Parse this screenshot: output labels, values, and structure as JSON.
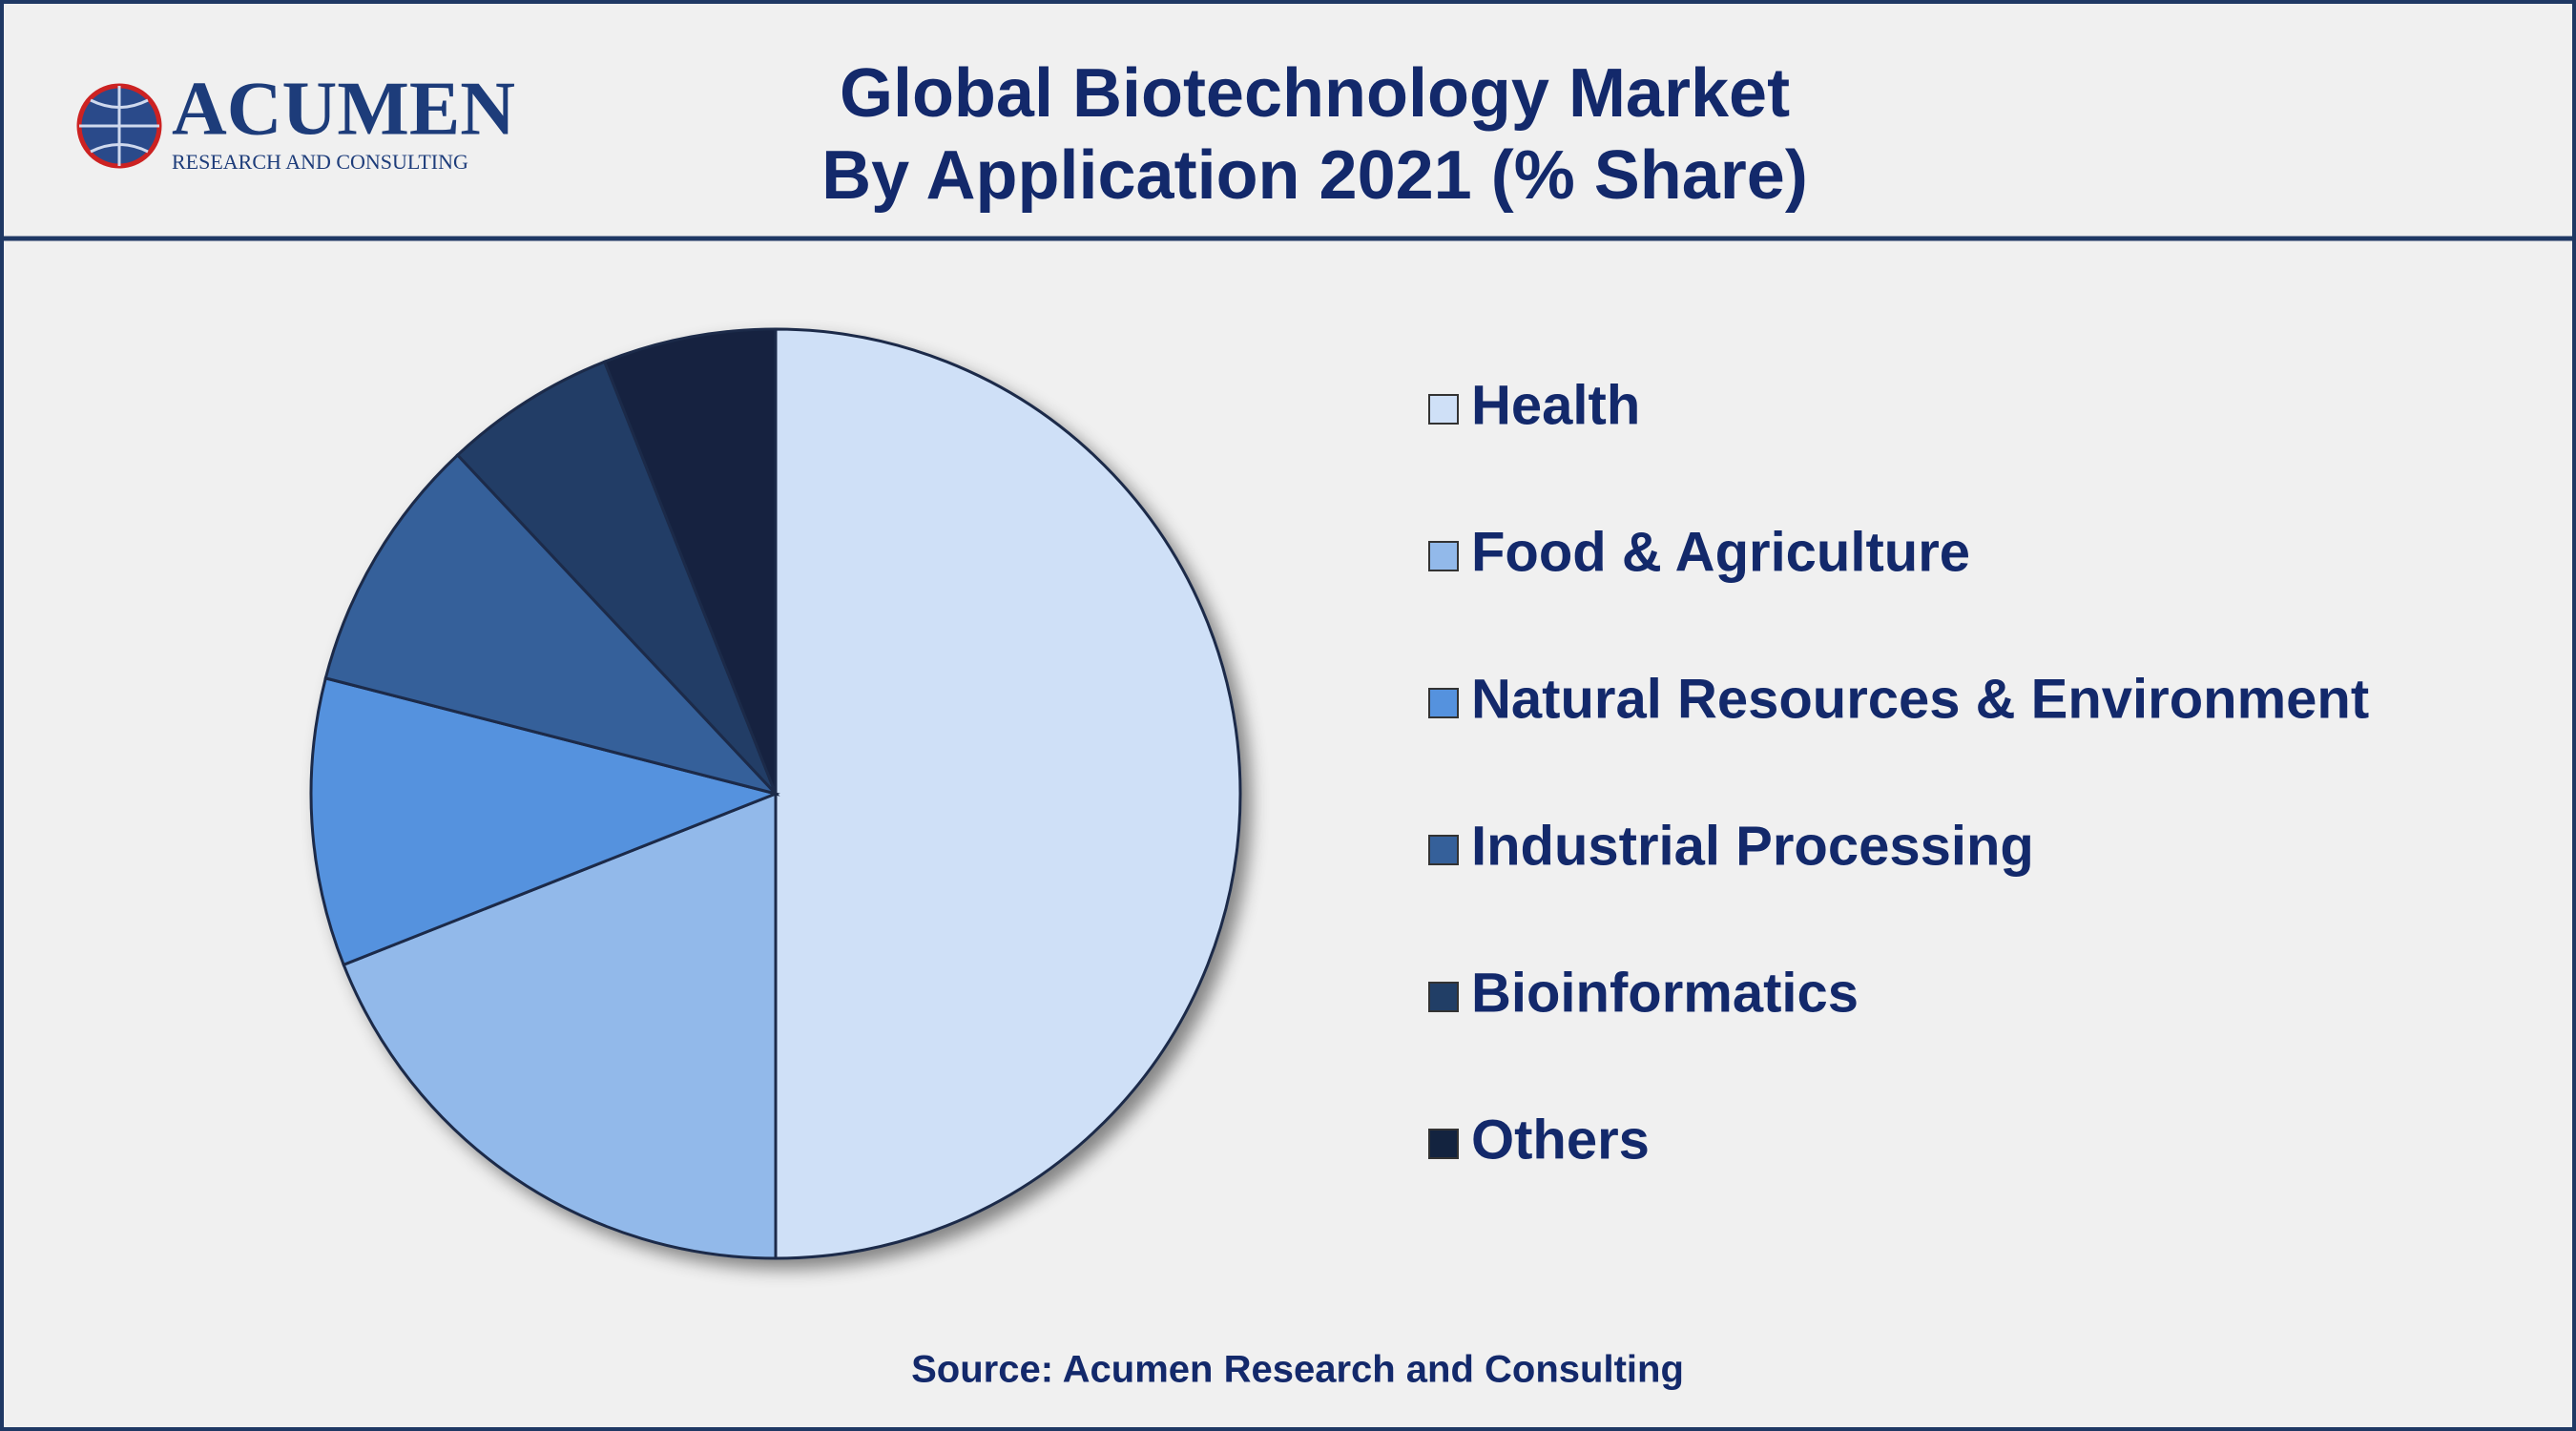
{
  "logo": {
    "name": "ACUMEN",
    "tagline": "RESEARCH AND CONSULTING"
  },
  "chart_data": {
    "type": "pie",
    "title": "Global Biotechnology Market",
    "subtitle": "By Application 2021 (% Share)",
    "categories": [
      "Health",
      "Food & Agriculture",
      "Natural Resources & Environment",
      "Industrial Processing",
      "Bioinformatics",
      "Others"
    ],
    "values": [
      50,
      19,
      10,
      9,
      6,
      6
    ],
    "colors": [
      "#cfe0f7",
      "#92b9ea",
      "#5592de",
      "#35609a",
      "#213e66",
      "#13233f"
    ],
    "legend": "right",
    "source": "Source: Acumen Research and Consulting"
  }
}
